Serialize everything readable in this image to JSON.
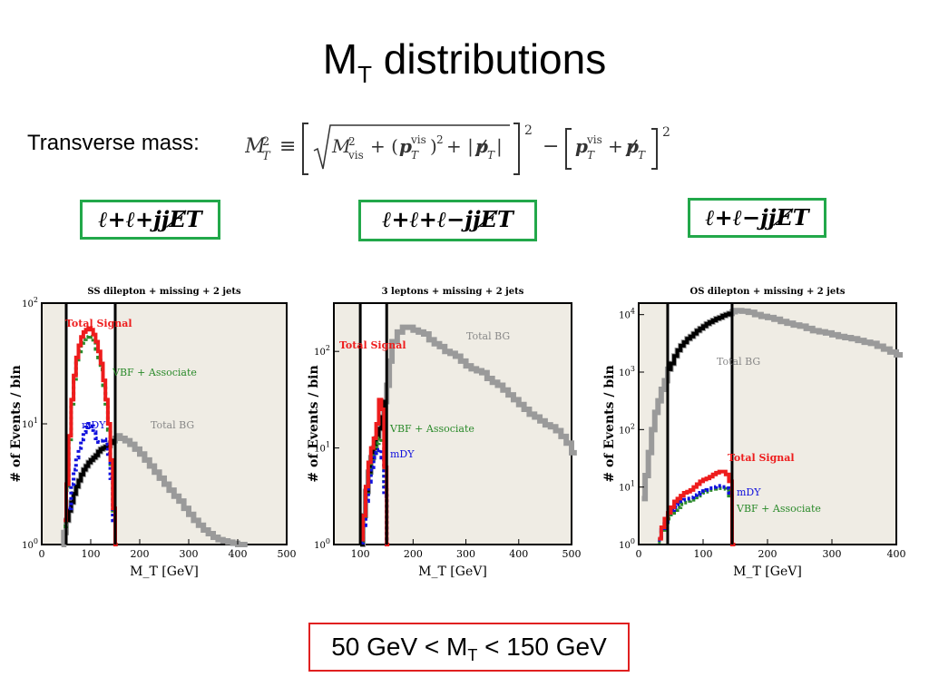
{
  "slide": {
    "title_main": "M",
    "title_sub": "T",
    "title_rest": " distributions",
    "transverse_label": "Transverse mass:",
    "cut_text_a": "50 GeV < M",
    "cut_text_sub": "T",
    "cut_text_b": " < 150 GeV"
  },
  "signatures": [
    {
      "label": "ℓ+ℓ+jjE̸T"
    },
    {
      "label": "ℓ+ℓ+ℓ−jjE̸T"
    },
    {
      "label": "ℓ+ℓ−jjE̸T"
    }
  ],
  "colors": {
    "signal": "#ee1c1c",
    "vbf": "#2a8a2a",
    "mdy": "#1010dd",
    "bg": "#9a9a9a",
    "shade": "#efece4",
    "box_green": "#22a84a",
    "box_red": "#e02020"
  },
  "chart_data": [
    {
      "type": "line",
      "title": "SS dilepton + missing + 2 jets",
      "xlabel": "M_T [GeV]",
      "ylabel": "# of Events / bin",
      "xlim": [
        0,
        500
      ],
      "log_y": true,
      "ylim_log10": [
        0,
        2
      ],
      "y_tick_labels": [
        "10^0",
        "10^1",
        "10^2"
      ],
      "x_ticks": [
        0,
        100,
        200,
        300,
        400,
        500
      ],
      "cut_window": [
        50,
        150
      ],
      "series_labels": [
        {
          "name": "Total Signal",
          "color": "signal"
        },
        {
          "name": "VBF + Associate",
          "color": "vbf"
        },
        {
          "name": "mDY",
          "color": "mdy"
        },
        {
          "name": "Total BG",
          "color": "bg"
        }
      ],
      "series": [
        {
          "key": "signal",
          "x": [
            45,
            50,
            55,
            60,
            65,
            70,
            75,
            80,
            85,
            90,
            95,
            100,
            105,
            110,
            115,
            120,
            125,
            130,
            135,
            140,
            145,
            150
          ],
          "log10y": [
            0.2,
            0.5,
            0.9,
            1.2,
            1.4,
            1.55,
            1.65,
            1.72,
            1.76,
            1.78,
            1.79,
            1.78,
            1.74,
            1.68,
            1.6,
            1.5,
            1.36,
            1.2,
            1.0,
            0.7,
            0.3,
            0.0
          ]
        },
        {
          "key": "vbf",
          "x": [
            45,
            50,
            55,
            60,
            65,
            70,
            75,
            80,
            85,
            90,
            95,
            100,
            105,
            110,
            115,
            120,
            125,
            130,
            135,
            140,
            145,
            150
          ],
          "log10y": [
            0.15,
            0.45,
            0.85,
            1.15,
            1.35,
            1.5,
            1.6,
            1.67,
            1.7,
            1.72,
            1.73,
            1.72,
            1.68,
            1.62,
            1.55,
            1.45,
            1.32,
            1.15,
            0.95,
            0.65,
            0.25,
            0.0
          ]
        },
        {
          "key": "mdy",
          "x": [
            55,
            60,
            65,
            70,
            75,
            80,
            85,
            90,
            95,
            100,
            105,
            110,
            115,
            120,
            125,
            130,
            135,
            140,
            145,
            150
          ],
          "log10y": [
            0.3,
            0.5,
            0.62,
            0.72,
            0.8,
            0.87,
            0.93,
            0.97,
            1.0,
            0.98,
            0.93,
            0.88,
            0.85,
            0.86,
            0.87,
            0.83,
            0.75,
            0.55,
            0.2,
            0.0
          ]
        },
        {
          "key": "bg",
          "x": [
            40,
            45,
            50,
            55,
            60,
            65,
            70,
            75,
            80,
            85,
            90,
            95,
            100,
            105,
            110,
            115,
            120,
            125,
            130,
            135,
            140,
            145,
            150,
            155,
            160,
            170,
            180,
            190,
            200,
            210,
            220,
            230,
            240,
            250,
            260,
            270,
            280,
            290,
            300,
            310,
            320,
            330,
            340,
            350,
            360,
            370,
            380,
            390,
            400,
            410
          ],
          "log10y": [
            0.0,
            0.1,
            0.2,
            0.28,
            0.35,
            0.42,
            0.48,
            0.53,
            0.58,
            0.62,
            0.65,
            0.68,
            0.7,
            0.72,
            0.74,
            0.77,
            0.79,
            0.8,
            0.81,
            0.82,
            0.84,
            0.86,
            0.88,
            0.9,
            0.88,
            0.86,
            0.83,
            0.79,
            0.75,
            0.7,
            0.65,
            0.6,
            0.55,
            0.5,
            0.45,
            0.4,
            0.36,
            0.3,
            0.25,
            0.2,
            0.16,
            0.12,
            0.09,
            0.06,
            0.04,
            0.03,
            0.02,
            0.01,
            0.0,
            0.0
          ]
        }
      ]
    },
    {
      "type": "line",
      "title": "3 leptons + missing + 2 jets",
      "xlabel": "M_T [GeV]",
      "ylabel": "# of Events / bin",
      "xlim": [
        50,
        500
      ],
      "log_y": true,
      "ylim_log10": [
        0,
        2.5
      ],
      "y_tick_labels": [
        "10^0",
        "10^1",
        "10^2"
      ],
      "x_ticks": [
        100,
        200,
        300,
        400,
        500
      ],
      "cut_window": [
        100,
        150
      ],
      "series_labels": [
        {
          "name": "Total Signal",
          "color": "signal"
        },
        {
          "name": "VBF + Associate",
          "color": "vbf"
        },
        {
          "name": "mDY",
          "color": "mdy"
        },
        {
          "name": "Total BG",
          "color": "bg"
        }
      ],
      "series": [
        {
          "key": "signal",
          "x": [
            100,
            105,
            110,
            115,
            120,
            125,
            130,
            135,
            140,
            145,
            150
          ],
          "log10y": [
            0.05,
            0.3,
            0.6,
            0.85,
            1.0,
            1.1,
            1.25,
            1.5,
            1.4,
            0.8,
            0.0
          ]
        },
        {
          "key": "vbf",
          "x": [
            100,
            105,
            110,
            115,
            120,
            125,
            130,
            135,
            140,
            145,
            150
          ],
          "log10y": [
            0.03,
            0.25,
            0.5,
            0.7,
            0.85,
            0.95,
            1.05,
            1.1,
            1.05,
            0.6,
            0.0
          ]
        },
        {
          "key": "mdy",
          "x": [
            100,
            105,
            110,
            115,
            120,
            125,
            130,
            135,
            140,
            145,
            150
          ],
          "log10y": [
            0.02,
            0.2,
            0.45,
            0.65,
            0.8,
            0.9,
            0.95,
            0.98,
            0.9,
            0.5,
            0.0
          ]
        },
        {
          "key": "bg",
          "x": [
            100,
            105,
            110,
            115,
            120,
            125,
            130,
            135,
            140,
            145,
            150,
            155,
            160,
            170,
            180,
            190,
            200,
            210,
            220,
            230,
            240,
            250,
            260,
            270,
            280,
            290,
            300,
            310,
            320,
            330,
            340,
            350,
            360,
            370,
            380,
            390,
            400,
            410,
            420,
            430,
            440,
            450,
            460,
            470,
            480,
            490,
            500
          ],
          "log10y": [
            0.0,
            0.3,
            0.55,
            0.75,
            0.9,
            1.0,
            1.1,
            1.2,
            1.32,
            1.48,
            1.65,
            1.9,
            2.1,
            2.2,
            2.25,
            2.25,
            2.22,
            2.2,
            2.18,
            2.12,
            2.08,
            2.05,
            2.0,
            1.98,
            1.95,
            1.9,
            1.85,
            1.82,
            1.8,
            1.78,
            1.72,
            1.68,
            1.65,
            1.6,
            1.55,
            1.5,
            1.45,
            1.4,
            1.35,
            1.32,
            1.28,
            1.24,
            1.22,
            1.18,
            1.12,
            1.05,
            0.95
          ]
        }
      ]
    },
    {
      "type": "line",
      "title": "OS dilepton + missing + 2 jets",
      "xlabel": "M_T [GeV]",
      "ylabel": "# of Events / bin",
      "xlim": [
        0,
        400
      ],
      "log_y": true,
      "ylim_log10": [
        0,
        4.2
      ],
      "y_tick_labels": [
        "10^0",
        "10^1",
        "10^2",
        "10^3",
        "10^4"
      ],
      "x_ticks": [
        0,
        100,
        200,
        300,
        400
      ],
      "cut_window": [
        45,
        145
      ],
      "series_labels": [
        {
          "name": "Total Signal",
          "color": "signal"
        },
        {
          "name": "mDY",
          "color": "mdy"
        },
        {
          "name": "VBF + Associate",
          "color": "vbf"
        },
        {
          "name": "Total BG",
          "color": "bg"
        }
      ],
      "series": [
        {
          "key": "signal",
          "x": [
            30,
            35,
            40,
            45,
            50,
            55,
            60,
            65,
            70,
            75,
            80,
            85,
            90,
            95,
            100,
            105,
            110,
            115,
            120,
            125,
            130,
            135,
            140,
            145
          ],
          "log10y": [
            0.1,
            0.3,
            0.45,
            0.55,
            0.65,
            0.75,
            0.8,
            0.85,
            0.9,
            0.92,
            0.95,
            1.0,
            1.05,
            1.1,
            1.13,
            1.15,
            1.18,
            1.22,
            1.25,
            1.27,
            1.27,
            1.22,
            1.1,
            0.0
          ]
        },
        {
          "key": "vbf",
          "x": [
            30,
            35,
            40,
            45,
            50,
            55,
            60,
            65,
            70,
            75,
            80,
            85,
            90,
            95,
            100,
            105,
            110,
            115,
            120,
            125,
            130,
            135,
            140,
            145
          ],
          "log10y": [
            0.05,
            0.2,
            0.35,
            0.45,
            0.55,
            0.6,
            0.65,
            0.7,
            0.73,
            0.76,
            0.78,
            0.82,
            0.85,
            0.87,
            0.9,
            0.92,
            0.95,
            0.97,
            0.98,
            0.98,
            0.97,
            0.95,
            0.85,
            0.0
          ]
        },
        {
          "key": "mdy",
          "x": [
            30,
            35,
            40,
            45,
            50,
            55,
            60,
            65,
            70,
            75,
            80,
            85,
            90,
            95,
            100,
            105,
            110,
            115,
            120,
            125,
            130,
            135,
            140,
            145
          ],
          "log10y": [
            0.08,
            0.25,
            0.4,
            0.5,
            0.6,
            0.65,
            0.7,
            0.75,
            0.78,
            0.8,
            0.82,
            0.86,
            0.88,
            0.9,
            0.93,
            0.95,
            0.98,
            1.0,
            1.02,
            1.02,
            1.0,
            0.98,
            0.9,
            0.0
          ]
        },
        {
          "key": "bg",
          "x": [
            5,
            10,
            15,
            20,
            25,
            30,
            35,
            40,
            45,
            50,
            55,
            60,
            65,
            70,
            75,
            80,
            85,
            90,
            95,
            100,
            105,
            110,
            115,
            120,
            125,
            130,
            135,
            140,
            145,
            150,
            160,
            170,
            180,
            190,
            200,
            210,
            220,
            230,
            240,
            250,
            260,
            270,
            280,
            290,
            300,
            310,
            320,
            330,
            340,
            350,
            360,
            370,
            380,
            390,
            400
          ],
          "log10y": [
            0.8,
            1.2,
            1.6,
            2.0,
            2.3,
            2.5,
            2.7,
            2.85,
            3.05,
            3.15,
            3.28,
            3.38,
            3.46,
            3.52,
            3.58,
            3.62,
            3.67,
            3.72,
            3.76,
            3.8,
            3.84,
            3.87,
            3.9,
            3.93,
            3.95,
            3.98,
            4.0,
            4.02,
            4.05,
            4.07,
            4.06,
            4.04,
            4.0,
            3.97,
            3.95,
            3.92,
            3.88,
            3.85,
            3.82,
            3.8,
            3.76,
            3.72,
            3.7,
            3.68,
            3.65,
            3.62,
            3.6,
            3.58,
            3.55,
            3.52,
            3.5,
            3.45,
            3.4,
            3.35,
            3.3
          ]
        }
      ]
    }
  ]
}
